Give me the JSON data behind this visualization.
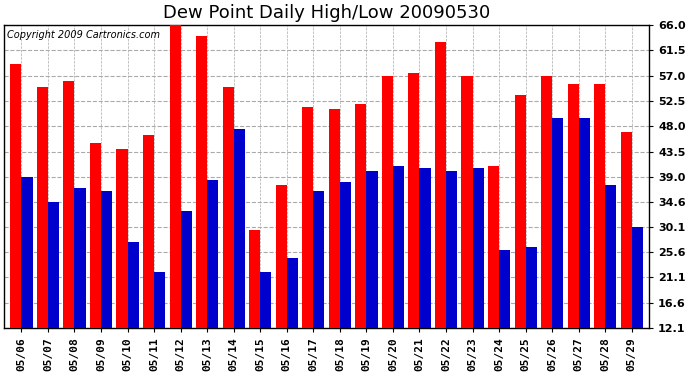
{
  "title": "Dew Point Daily High/Low 20090530",
  "copyright": "Copyright 2009 Cartronics.com",
  "dates": [
    "05/06",
    "05/07",
    "05/08",
    "05/09",
    "05/10",
    "05/11",
    "05/12",
    "05/13",
    "05/14",
    "05/15",
    "05/16",
    "05/17",
    "05/18",
    "05/19",
    "05/20",
    "05/21",
    "05/22",
    "05/23",
    "05/24",
    "05/25",
    "05/26",
    "05/27",
    "05/28",
    "05/29"
  ],
  "highs": [
    59.0,
    55.0,
    56.0,
    45.0,
    44.0,
    46.5,
    67.0,
    64.0,
    55.0,
    29.5,
    37.5,
    51.5,
    51.0,
    52.0,
    57.0,
    57.5,
    63.0,
    57.0,
    41.0,
    53.5,
    57.0,
    55.5,
    55.5,
    47.0
  ],
  "lows": [
    39.0,
    34.5,
    37.0,
    36.5,
    27.5,
    22.0,
    33.0,
    38.5,
    47.5,
    22.0,
    24.5,
    36.5,
    38.0,
    40.0,
    41.0,
    40.5,
    40.0,
    40.5,
    26.0,
    26.5,
    49.5,
    49.5,
    37.5,
    30.0
  ],
  "high_color": "#ff0000",
  "low_color": "#0000cc",
  "bg_color": "#ffffff",
  "grid_color": "#aaaaaa",
  "ylim_min": 12.1,
  "ylim_max": 66.0,
  "yticks": [
    12.1,
    16.6,
    21.1,
    25.6,
    30.1,
    34.6,
    39.0,
    43.5,
    48.0,
    52.5,
    57.0,
    61.5,
    66.0
  ],
  "ytick_labels": [
    "12.1",
    "16.6",
    "21.1",
    "25.6",
    "30.1",
    "34.6",
    "39.0",
    "43.5",
    "48.0",
    "52.5",
    "57.0",
    "61.5",
    "66.0"
  ],
  "bar_width": 0.42,
  "title_fontsize": 13,
  "tick_fontsize": 8,
  "copyright_fontsize": 7
}
